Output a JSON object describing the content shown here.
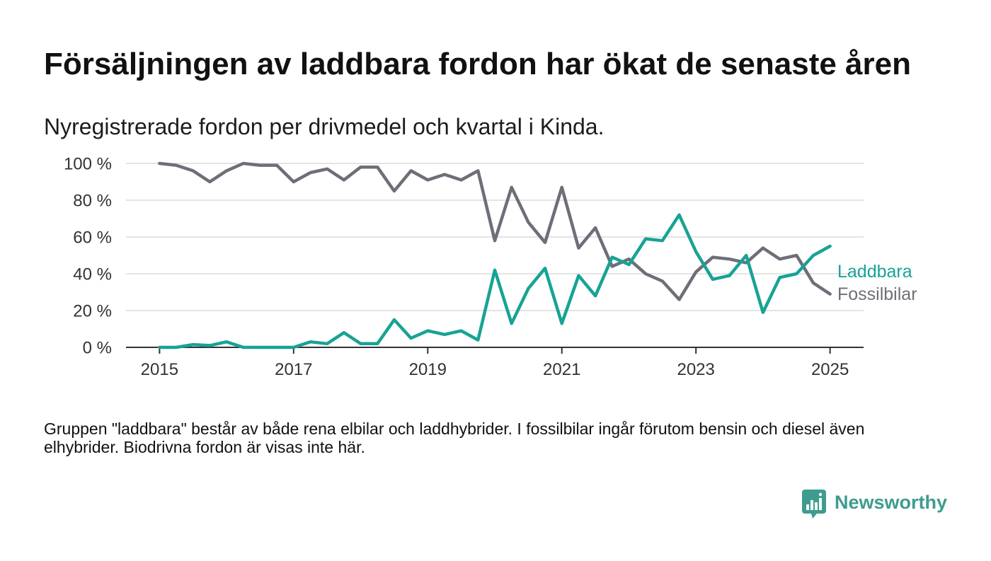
{
  "chart_data": {
    "type": "line",
    "title": "Försäljningen av laddbara fordon har ökat de senaste åren",
    "subtitle": "Nyregistrerade fordon per drivmedel och kvartal i Kinda.",
    "x": [
      "2015-01-01",
      "2015-04-01",
      "2015-07-01",
      "2015-10-01",
      "2016-01-01",
      "2016-04-01",
      "2016-07-01",
      "2016-10-01",
      "2017-01-01",
      "2017-04-01",
      "2017-07-01",
      "2017-10-01",
      "2018-01-01",
      "2018-04-01",
      "2018-07-01",
      "2018-10-01",
      "2019-01-01",
      "2019-04-01",
      "2019-07-01",
      "2019-10-01",
      "2020-01-01",
      "2020-04-01",
      "2020-07-01",
      "2020-10-01",
      "2021-01-01",
      "2021-04-01",
      "2021-07-01",
      "2021-10-01",
      "2022-01-01",
      "2022-04-01",
      "2022-07-01",
      "2022-10-01",
      "2023-01-01",
      "2023-04-01",
      "2023-07-01",
      "2023-10-01",
      "2024-01-01",
      "2024-04-01",
      "2024-07-01",
      "2024-10-01",
      "2025-01-01"
    ],
    "xlim": [
      "2014-07-01",
      "2025-07-01"
    ],
    "ylim": [
      0,
      100
    ],
    "x_ticks": [
      {
        "value": "2015-01-01",
        "label": "2015"
      },
      {
        "value": "2017-01-01",
        "label": "2017"
      },
      {
        "value": "2019-01-01",
        "label": "2019"
      },
      {
        "value": "2021-01-01",
        "label": "2021"
      },
      {
        "value": "2023-01-01",
        "label": "2023"
      },
      {
        "value": "2025-01-01",
        "label": "2025"
      }
    ],
    "y_ticks": [
      {
        "value": 0,
        "label": "0 %"
      },
      {
        "value": 20,
        "label": "20 %"
      },
      {
        "value": 40,
        "label": "40 %"
      },
      {
        "value": 60,
        "label": "60 %"
      },
      {
        "value": 80,
        "label": "80 %"
      },
      {
        "value": 100,
        "label": "100 %"
      }
    ],
    "grid": "horizontal",
    "legend": "right",
    "series": [
      {
        "name": "Laddbara",
        "color": "#17a395",
        "values": [
          0,
          0,
          1.5,
          1,
          3,
          0,
          0,
          0,
          0,
          3,
          2,
          8,
          2,
          2,
          15,
          5,
          9,
          7,
          9,
          4,
          42,
          13,
          32,
          43,
          13,
          39,
          28,
          49,
          45,
          59,
          58,
          72,
          52,
          37,
          39,
          50,
          19,
          38,
          40,
          50,
          55
        ]
      },
      {
        "name": "Fossilbilar",
        "color": "#6f6e78",
        "values": [
          100,
          99,
          96,
          90,
          96,
          100,
          99,
          99,
          90,
          95,
          97,
          91,
          98,
          98,
          85,
          96,
          91,
          94,
          91,
          96,
          58,
          87,
          68,
          57,
          87,
          54,
          65,
          44,
          48,
          40,
          36,
          26,
          41,
          49,
          48,
          46,
          54,
          48,
          50,
          35,
          29
        ]
      }
    ]
  },
  "footnote": "Gruppen \"laddbara\" består av både rena elbilar och laddhybrider. I fossilbilar ingår förutom bensin och diesel även elhybrider. Biodrivna fordon är visas inte här.",
  "brand": {
    "name": "Newsworthy",
    "icon": "newsworthy-logo-icon",
    "color": "#3e9c8e"
  }
}
